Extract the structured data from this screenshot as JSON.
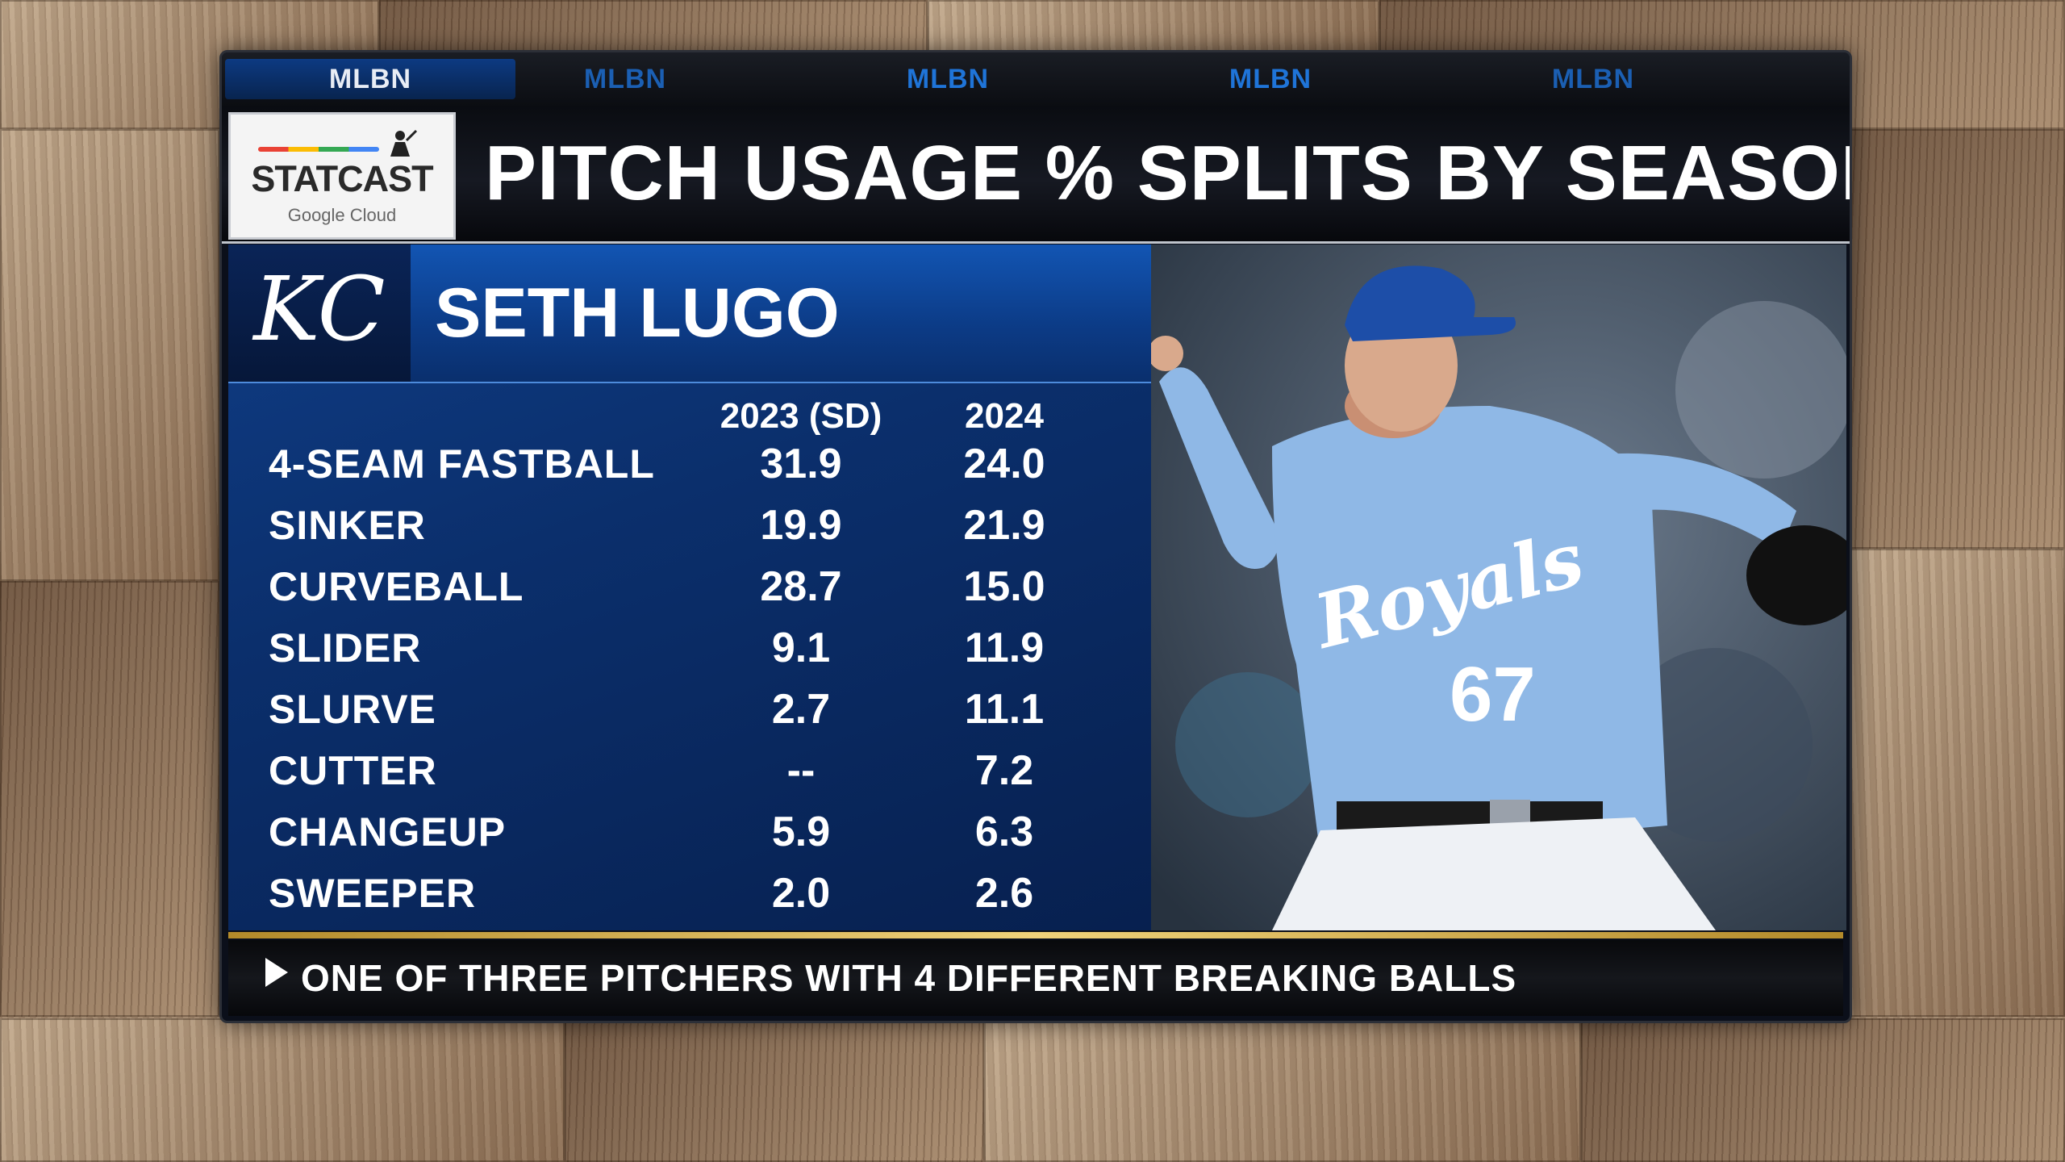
{
  "brand_bar": [
    "MLBN",
    "MLBN",
    "MLBN",
    "MLBN",
    "MLBN"
  ],
  "logo": {
    "name": "STATCAST",
    "sub": "Google Cloud"
  },
  "title": "PITCH USAGE % SPLITS BY SEASON",
  "player": {
    "team_logo": "KC",
    "name": "SETH LUGO"
  },
  "table": {
    "columns": [
      "2023 (SD)",
      "2024"
    ],
    "rows": [
      {
        "pitch": "4-SEAM FASTBALL",
        "y2023": "31.9",
        "y2024": "24.0"
      },
      {
        "pitch": "SINKER",
        "y2023": "19.9",
        "y2024": "21.9"
      },
      {
        "pitch": "CURVEBALL",
        "y2023": "28.7",
        "y2024": "15.0"
      },
      {
        "pitch": "SLIDER",
        "y2023": "9.1",
        "y2024": "11.9"
      },
      {
        "pitch": "SLURVE",
        "y2023": "2.7",
        "y2024": "11.1"
      },
      {
        "pitch": "CUTTER",
        "y2023": "--",
        "y2024": "7.2"
      },
      {
        "pitch": "CHANGEUP",
        "y2023": "5.9",
        "y2024": "6.3"
      },
      {
        "pitch": "SWEEPER",
        "y2023": "2.0",
        "y2024": "2.6"
      }
    ]
  },
  "jersey": {
    "wordmark": "Royals",
    "number": "67"
  },
  "ticker": "ONE OF THREE PITCHERS WITH 4 DIFFERENT BREAKING BALLS",
  "colors": {
    "royal_blue": "#0f3d86",
    "jersey_blue": "#8fb8e6",
    "gold": "#f0d27a"
  }
}
